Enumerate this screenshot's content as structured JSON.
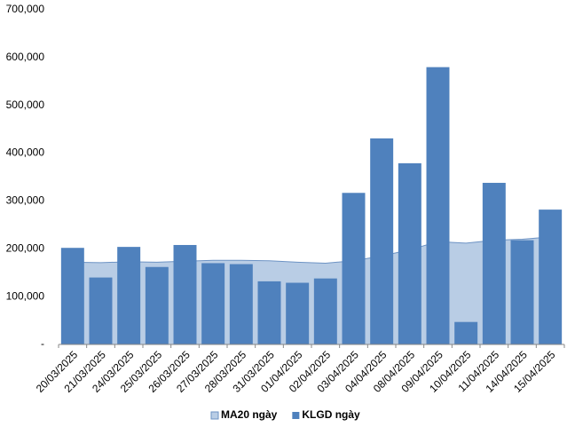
{
  "chart_data": {
    "type": "bar",
    "categories": [
      "20/03/2025",
      "21/03/2025",
      "24/03/2025",
      "25/03/2025",
      "26/03/2025",
      "27/03/2025",
      "28/03/2025",
      "31/03/2025",
      "01/04/2025",
      "02/04/2025",
      "03/04/2025",
      "04/04/2025",
      "08/04/2025",
      "09/04/2025",
      "10/04/2025",
      "11/04/2025",
      "14/04/2025",
      "15/04/2025"
    ],
    "series": [
      {
        "name": "MA20 ngày",
        "type": "area",
        "color": "#b9cde5",
        "line_color": "#6d93c4",
        "values": [
          172000,
          171000,
          173000,
          172000,
          174000,
          176000,
          176000,
          175000,
          172000,
          170000,
          175000,
          185000,
          198000,
          215000,
          212000,
          218000,
          220000,
          225000
        ]
      },
      {
        "name": "KLGD ngày",
        "type": "bar",
        "color": "#4f81bd",
        "values": [
          202000,
          140000,
          204000,
          162000,
          208000,
          170000,
          168000,
          132000,
          129000,
          138000,
          317000,
          431000,
          379000,
          580000,
          47000,
          338000,
          218000,
          282000
        ]
      }
    ],
    "ylim": [
      0,
      700000
    ],
    "yticks": [
      {
        "value": 0,
        "label": "-"
      },
      {
        "value": 100000,
        "label": "100,000"
      },
      {
        "value": 200000,
        "label": "200,000"
      },
      {
        "value": 300000,
        "label": "300,000"
      },
      {
        "value": 400000,
        "label": "400,000"
      },
      {
        "value": 500000,
        "label": "500,000"
      },
      {
        "value": 600000,
        "label": "600,000"
      },
      {
        "value": 700000,
        "label": "700,000"
      }
    ],
    "grid": false,
    "legend": "bottom"
  }
}
